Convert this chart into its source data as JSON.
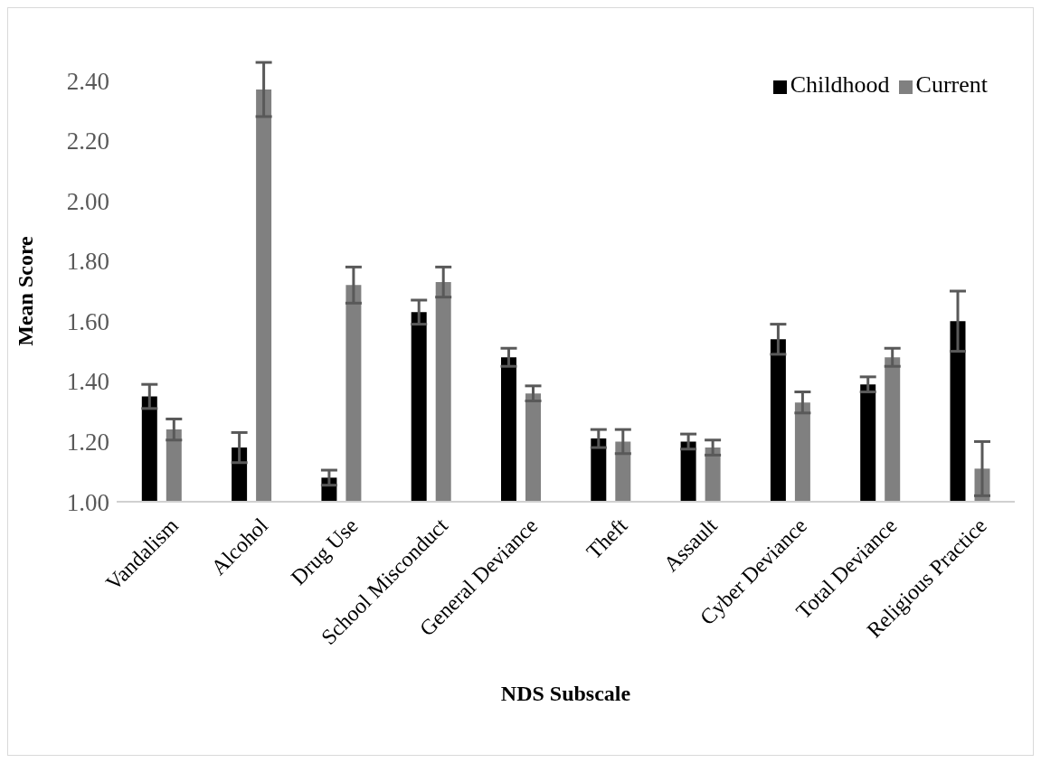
{
  "chart_data": {
    "type": "bar",
    "xlabel": "NDS Subscale",
    "ylabel": "Mean Score",
    "categories": [
      "Vandalism",
      "Alcohol",
      "Drug Use",
      "School Misconduct",
      "General Deviance",
      "Theft",
      "Assault",
      "Cyber Deviance",
      "Total Deviance",
      "Religious Practice"
    ],
    "series": [
      {
        "name": "Childhood",
        "color": "#000000",
        "values": [
          1.35,
          1.18,
          1.08,
          1.63,
          1.48,
          1.21,
          1.2,
          1.54,
          1.39,
          1.6
        ],
        "errors": [
          0.04,
          0.05,
          0.025,
          0.04,
          0.03,
          0.03,
          0.025,
          0.05,
          0.025,
          0.1
        ]
      },
      {
        "name": "Current",
        "color": "#808080",
        "values": [
          1.24,
          2.37,
          1.72,
          1.73,
          1.36,
          1.2,
          1.18,
          1.33,
          1.48,
          1.11
        ],
        "errors": [
          0.035,
          0.09,
          0.06,
          0.05,
          0.025,
          0.04,
          0.025,
          0.035,
          0.03,
          0.09
        ]
      }
    ],
    "ylim": [
      1.0,
      2.4
    ],
    "yticks": [
      {
        "value": 1.0,
        "label": "1.00"
      },
      {
        "value": 1.2,
        "label": "1.20"
      },
      {
        "value": 1.4,
        "label": "1.40"
      },
      {
        "value": 1.6,
        "label": "1.60"
      },
      {
        "value": 1.8,
        "label": "1.80"
      },
      {
        "value": 2.0,
        "label": "2.00"
      },
      {
        "value": 2.2,
        "label": "2.20"
      },
      {
        "value": 2.4,
        "label": "2.40"
      }
    ],
    "grid": false,
    "legend": "top right"
  }
}
